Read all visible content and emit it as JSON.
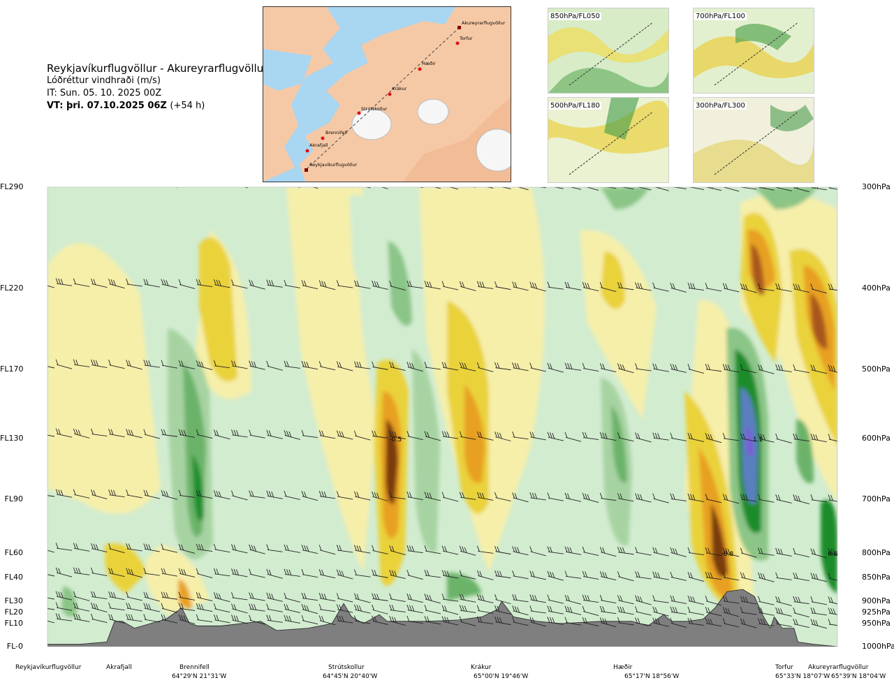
{
  "header": {
    "title": "Reykjavíkurflugvöllur - Akureyrarflugvöllur",
    "subtitle": "Lóðréttur vindhraði (m/s)",
    "issue_time": "IT: Sun. 05. 10. 2025 00Z",
    "valid_time": "VT: þri. 07.10.2025 06Z",
    "lead": "(+54 h)"
  },
  "colors": {
    "up_dark": "#7a3b10",
    "up_mid": "#e8b020",
    "up_light": "#f5efa0",
    "down_light": "#d2ecd0",
    "down_mid": "#7cbf78",
    "down_dark": "#1e8c2c",
    "down_max": "#5a7fbf",
    "terrain": "#7f7f7f",
    "sea": "#a9d6f1",
    "land": "#f6c9a6"
  },
  "map": {
    "stations": [
      "Akureyrarflugvöllur",
      "Torfur",
      "Hæðir",
      "Krákur",
      "Strútskollur",
      "Brennifell",
      "Akrafjall",
      "Reykjavíkurflugvöllur"
    ]
  },
  "mini_maps": [
    {
      "label": "850hPa/FL050"
    },
    {
      "label": "700hPa/FL100"
    },
    {
      "label": "500hPa/FL180"
    },
    {
      "label": "300hPa/FL300"
    }
  ],
  "chart_data": {
    "type": "heatmap",
    "title": "Reykjavíkurflugvöllur - Akureyrarflugvöllur",
    "quantity": "Lóðréttur vindhraði (m/s)",
    "flight_levels": [
      "FL290",
      "FL220",
      "FL170",
      "FL130",
      "FL90",
      "FL60",
      "FL40",
      "FL30",
      "FL20",
      "FL10",
      "FL-0"
    ],
    "pressure_levels": [
      "300hPa",
      "400hPa",
      "500hPa",
      "600hPa",
      "700hPa",
      "800hPa",
      "850hPa",
      "900hPa",
      "925hPa",
      "950hPa",
      "1000hPa"
    ],
    "pressure_values": [
      300,
      400,
      500,
      600,
      700,
      800,
      850,
      900,
      925,
      950,
      1000
    ],
    "x_range": [
      0,
      1
    ],
    "y_range_hPa": [
      1000,
      300
    ],
    "locations": [
      {
        "name": "Reykjavíkurflugvöllur",
        "coord": "",
        "pos": 0.0
      },
      {
        "name": "Akrafjall",
        "coord": "",
        "pos": 0.09
      },
      {
        "name": "Brennifell",
        "coord": "64°29'N 21°31'W",
        "pos": 0.19
      },
      {
        "name": "Strútskollur",
        "coord": "64°45'N 20°40'W",
        "pos": 0.38
      },
      {
        "name": "Krákur",
        "coord": "65°00'N 19°46'W",
        "pos": 0.58
      },
      {
        "name": "Hæðir",
        "coord": "65°17'N 18°56'W",
        "pos": 0.77
      },
      {
        "name": "Torfur",
        "coord": "65°33'N 18°07'W",
        "pos": 0.94
      },
      {
        "name": "Akureyrarflugvöllur",
        "coord": "65°39'N 18°04'W",
        "pos": 1.0
      }
    ],
    "annotations": [
      {
        "text": "-0.5",
        "x": 0.44,
        "p": 600
      },
      {
        "text": "1.1",
        "x": 0.9,
        "p": 600
      },
      {
        "text": "-0.8",
        "x": 0.86,
        "p": 800
      },
      {
        "text": "0.6",
        "x": 0.995,
        "p": 800
      }
    ],
    "terrain": [
      [
        0.0,
        995
      ],
      [
        0.04,
        995
      ],
      [
        0.075,
        990
      ],
      [
        0.085,
        945
      ],
      [
        0.095,
        945
      ],
      [
        0.11,
        960
      ],
      [
        0.15,
        940
      ],
      [
        0.17,
        915
      ],
      [
        0.18,
        950
      ],
      [
        0.19,
        955
      ],
      [
        0.22,
        955
      ],
      [
        0.27,
        945
      ],
      [
        0.29,
        965
      ],
      [
        0.33,
        960
      ],
      [
        0.36,
        950
      ],
      [
        0.375,
        905
      ],
      [
        0.385,
        935
      ],
      [
        0.4,
        950
      ],
      [
        0.42,
        930
      ],
      [
        0.43,
        945
      ],
      [
        0.45,
        945
      ],
      [
        0.48,
        945
      ],
      [
        0.52,
        942
      ],
      [
        0.55,
        935
      ],
      [
        0.57,
        918
      ],
      [
        0.575,
        900
      ],
      [
        0.59,
        935
      ],
      [
        0.62,
        945
      ],
      [
        0.65,
        950
      ],
      [
        0.7,
        945
      ],
      [
        0.74,
        945
      ],
      [
        0.76,
        955
      ],
      [
        0.78,
        930
      ],
      [
        0.79,
        945
      ],
      [
        0.81,
        945
      ],
      [
        0.83,
        940
      ],
      [
        0.845,
        915
      ],
      [
        0.86,
        880
      ],
      [
        0.88,
        875
      ],
      [
        0.895,
        890
      ],
      [
        0.905,
        930
      ],
      [
        0.915,
        960
      ],
      [
        0.92,
        935
      ],
      [
        0.93,
        960
      ],
      [
        0.945,
        960
      ],
      [
        0.95,
        990
      ],
      [
        0.97,
        995
      ],
      [
        1.0,
        1000
      ]
    ]
  }
}
